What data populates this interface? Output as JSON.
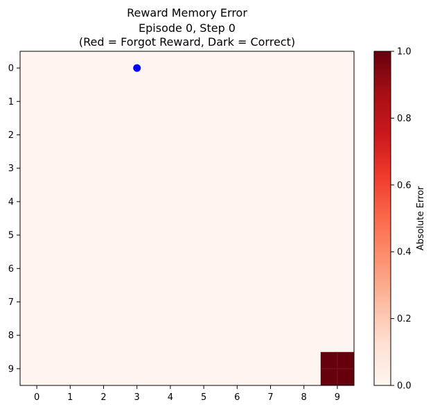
{
  "chart_data": {
    "type": "heatmap",
    "title_lines": [
      "Reward Memory Error",
      "Episode 0, Step 0",
      "(Red = Forgot Reward, Dark = Correct)"
    ],
    "x_ticks": [
      "0",
      "1",
      "2",
      "3",
      "4",
      "5",
      "6",
      "7",
      "8",
      "9"
    ],
    "y_ticks": [
      "0",
      "1",
      "2",
      "3",
      "4",
      "5",
      "6",
      "7",
      "8",
      "9"
    ],
    "grid_rows": 10,
    "grid_cols": 10,
    "cells_nonzero": [
      {
        "row": 9,
        "col": 9,
        "value": 1.0
      }
    ],
    "background_value": 0.0,
    "agent": {
      "row": 0,
      "col": 3,
      "color": "#0000ff"
    },
    "colormap": "Reds",
    "colorbar": {
      "label": "Absolute Error",
      "min": 0.0,
      "max": 1.0,
      "ticks": [
        "0.0",
        "0.2",
        "0.4",
        "0.6",
        "0.8",
        "1.0"
      ]
    }
  }
}
